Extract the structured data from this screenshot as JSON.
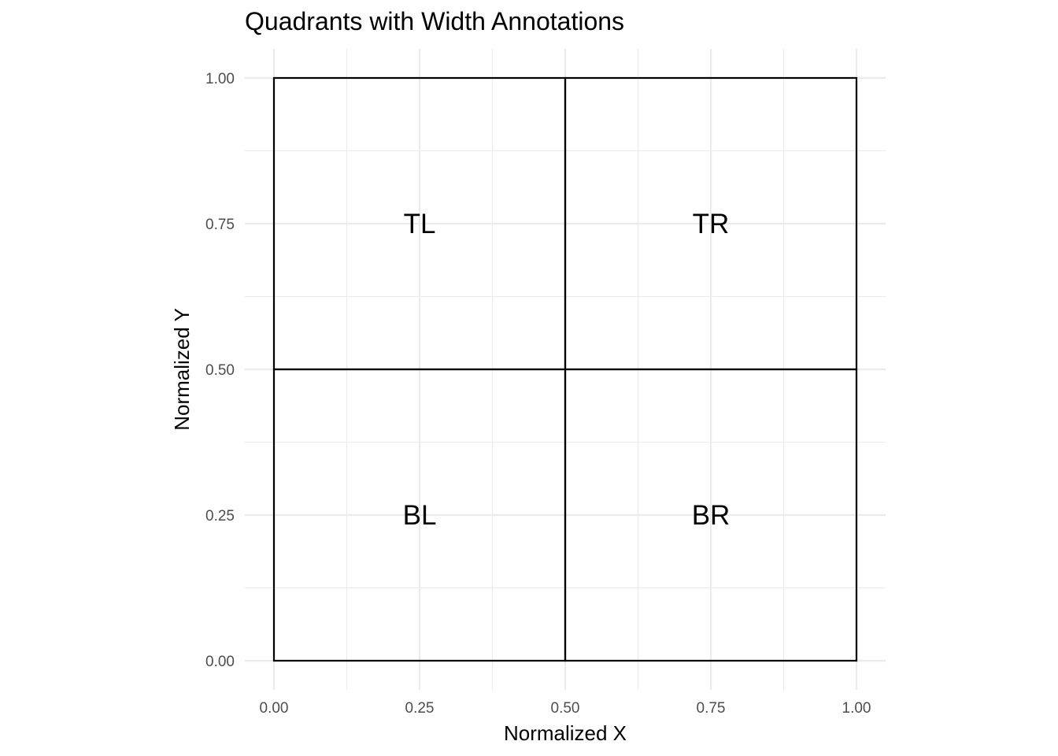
{
  "chart_data": {
    "type": "rect",
    "title": "Quadrants with Width Annotations",
    "xlabel": "Normalized X",
    "ylabel": "Normalized Y",
    "xlim": [
      0,
      1
    ],
    "ylim": [
      0,
      1
    ],
    "grid": true,
    "x_ticks": [
      "0.00",
      "0.25",
      "0.50",
      "0.75",
      "1.00"
    ],
    "y_ticks": [
      "0.00",
      "0.25",
      "0.50",
      "0.75",
      "1.00"
    ],
    "x_tick_values": [
      0,
      0.25,
      0.5,
      0.75,
      1
    ],
    "y_tick_values": [
      0,
      0.25,
      0.5,
      0.75,
      1
    ],
    "quadrants": [
      {
        "label": "TL",
        "xmin": 0,
        "xmax": 0.5,
        "ymin": 0.5,
        "ymax": 1,
        "label_x": 0.25,
        "label_y": 0.75
      },
      {
        "label": "TR",
        "xmin": 0.5,
        "xmax": 1,
        "ymin": 0.5,
        "ymax": 1,
        "label_x": 0.75,
        "label_y": 0.75
      },
      {
        "label": "BL",
        "xmin": 0,
        "xmax": 0.5,
        "ymin": 0,
        "ymax": 0.5,
        "label_x": 0.25,
        "label_y": 0.25
      },
      {
        "label": "BR",
        "xmin": 0.5,
        "xmax": 1,
        "ymin": 0,
        "ymax": 0.5,
        "label_x": 0.75,
        "label_y": 0.25
      }
    ],
    "colors": {
      "background": "#ffffff",
      "grid": "#ebebeb",
      "rect_stroke": "#000000",
      "tick_text": "#4d4d4d",
      "text": "#000000"
    }
  }
}
